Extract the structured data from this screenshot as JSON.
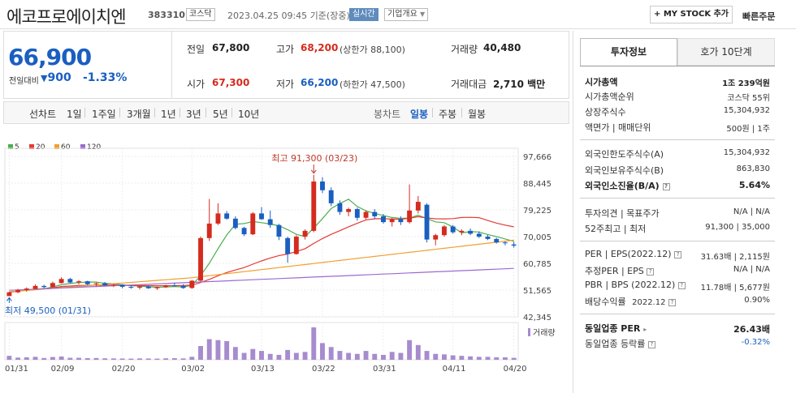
{
  "header": {
    "stock_name": "에코프로에이치엔",
    "stock_code": "383310",
    "market": "코스닥",
    "datetime": "2023.04.25 09:45 기준(장중)",
    "realtime": "실시간",
    "company_overview": "기업개요",
    "mystock_label": "+ MY STOCK 추가",
    "quick_order": "빠른주문"
  },
  "summary": {
    "price": "66,900",
    "change_label": "전일대비",
    "change_value": "900",
    "change_pct": "-1.33%",
    "prev_close_label": "전일",
    "prev_close": "67,800",
    "high_label": "고가",
    "high": "68,200",
    "upper_limit": "(상한가 88,100)",
    "volume_label": "거래량",
    "volume": "40,480",
    "open_label": "시가",
    "open": "67,300",
    "low_label": "저가",
    "low": "66,200",
    "lower_limit": "(하한가 47,500)",
    "amount_label": "거래대금",
    "amount": "2,710 백만"
  },
  "period_bar": {
    "line_chart": "선차트",
    "periods": [
      "1일",
      "1주일",
      "3개월",
      "1년",
      "3년",
      "5년",
      "10년"
    ],
    "candle_chart": "봉차트",
    "candle_periods": [
      "일봉",
      "주봉",
      "월봉"
    ],
    "active_candle": "일봉"
  },
  "chart_data": {
    "type": "candlestick",
    "legend": [
      {
        "name": "5",
        "color": "#4caf50"
      },
      {
        "name": "20",
        "color": "#e53935"
      },
      {
        "name": "60",
        "color": "#f0a030"
      },
      {
        "name": "120",
        "color": "#9c6ad0"
      }
    ],
    "y_ticks": [
      "97,666",
      "88,445",
      "79,225",
      "70,005",
      "60,785",
      "51,565",
      "42,345"
    ],
    "ylim": [
      42345,
      97666
    ],
    "x_ticks": [
      "01/31",
      "02/09",
      "02/20",
      "03/02",
      "03/13",
      "03/22",
      "03/31",
      "04/11",
      "04/20"
    ],
    "max_label": "최고 91,300 (03/23)",
    "min_label": "최저 49,500 (01/31)",
    "volume_label": "거래량",
    "candles": [
      [
        49500,
        51000,
        49500,
        50800
      ],
      [
        50800,
        52000,
        50500,
        51600
      ],
      [
        51600,
        52500,
        51000,
        52100
      ],
      [
        52000,
        53500,
        51800,
        53000
      ],
      [
        53000,
        53400,
        52200,
        52600
      ],
      [
        52600,
        54500,
        52400,
        54000
      ],
      [
        54000,
        56000,
        53800,
        55400
      ],
      [
        55400,
        55800,
        53800,
        54200
      ],
      [
        54200,
        55000,
        53500,
        54600
      ],
      [
        54600,
        54800,
        53200,
        53600
      ],
      [
        53600,
        54200,
        52800,
        53900
      ],
      [
        53900,
        54400,
        53000,
        53200
      ],
      [
        53200,
        53800,
        52600,
        53400
      ],
      [
        53400,
        53600,
        52200,
        52700
      ],
      [
        52700,
        53200,
        52000,
        52400
      ],
      [
        52400,
        53000,
        51800,
        52800
      ],
      [
        52800,
        53200,
        52000,
        52200
      ],
      [
        52200,
        52800,
        51600,
        52600
      ],
      [
        52600,
        53400,
        52300,
        53200
      ],
      [
        53200,
        54000,
        52800,
        53000
      ],
      [
        53000,
        53600,
        52000,
        52300
      ],
      [
        52300,
        55000,
        52000,
        54800
      ],
      [
        54800,
        70000,
        54500,
        69500
      ],
      [
        69500,
        83000,
        68500,
        74500
      ],
      [
        74500,
        81500,
        74000,
        78000
      ],
      [
        78000,
        78800,
        75800,
        76200
      ],
      [
        76200,
        77000,
        72500,
        73000
      ],
      [
        73000,
        73400,
        70200,
        70800
      ],
      [
        70800,
        78500,
        70500,
        78000
      ],
      [
        78000,
        80200,
        75800,
        76000
      ],
      [
        76000,
        79000,
        73000,
        74000
      ],
      [
        74000,
        74400,
        68800,
        70000
      ],
      [
        69500,
        70000,
        61000,
        64000
      ],
      [
        64000,
        70500,
        63800,
        70000
      ],
      [
        70000,
        72500,
        69000,
        72000
      ],
      [
        72000,
        91300,
        71500,
        89000
      ],
      [
        89000,
        90500,
        85000,
        86000
      ],
      [
        86000,
        87000,
        80500,
        81500
      ],
      [
        81500,
        82500,
        77500,
        78500
      ],
      [
        78500,
        80000,
        77000,
        79500
      ],
      [
        79500,
        80000,
        75500,
        76500
      ],
      [
        76500,
        79000,
        76000,
        78500
      ],
      [
        78500,
        79500,
        76000,
        77000
      ],
      [
        77000,
        77800,
        74500,
        75000
      ],
      [
        75000,
        76500,
        73500,
        76000
      ],
      [
        76000,
        77000,
        74000,
        75000
      ],
      [
        75000,
        88000,
        74500,
        79000
      ],
      [
        79000,
        84000,
        78000,
        82000
      ],
      [
        81000,
        81500,
        68000,
        69000
      ],
      [
        69000,
        71000,
        67000,
        70500
      ],
      [
        70500,
        74000,
        70000,
        73500
      ],
      [
        73500,
        74000,
        71000,
        71500
      ],
      [
        71500,
        72500,
        70500,
        72000
      ],
      [
        72000,
        72800,
        70500,
        71000
      ],
      [
        71000,
        71800,
        69500,
        70000
      ],
      [
        70000,
        70600,
        68800,
        69200
      ],
      [
        69200,
        69600,
        67600,
        68000
      ],
      [
        68000,
        68400,
        67000,
        67800
      ],
      [
        67300,
        68200,
        66200,
        66900
      ]
    ],
    "volumes": [
      40,
      22,
      25,
      30,
      18,
      28,
      33,
      20,
      20,
      17,
      18,
      15,
      14,
      13,
      12,
      14,
      13,
      12,
      15,
      16,
      14,
      30,
      140,
      210,
      200,
      190,
      130,
      70,
      110,
      90,
      60,
      50,
      100,
      70,
      80,
      330,
      170,
      130,
      90,
      70,
      60,
      90,
      60,
      50,
      80,
      70,
      200,
      150,
      90,
      60,
      55,
      45,
      40,
      35,
      30,
      30,
      25,
      25,
      20
    ]
  },
  "right_panel": {
    "tab_info": "투자정보",
    "tab_hoga": "호가 10단계",
    "market_cap_label": "시가총액",
    "market_cap": "1조 239억원",
    "rank_label": "시가총액순위",
    "rank": "코스닥 55위",
    "shares_label": "상장주식수",
    "shares": "15,304,932",
    "par_label": "액면가 | 매매단위",
    "par": "500원 | 1주",
    "foreign_limit_label": "외국인한도주식수(A)",
    "foreign_limit": "15,304,932",
    "foreign_hold_label": "외국인보유주식수(B)",
    "foreign_hold": "863,830",
    "foreign_ratio_label": "외국인소진율(B/A)",
    "foreign_ratio": "5.64%",
    "opinion_label": "투자의견 | 목표주가",
    "opinion": "N/A | N/A",
    "week52_label": "52주최고 | 최저",
    "week52": "91,300 | 35,000",
    "per_label": "PER | EPS(2022.12)",
    "per": "31.63배 | 2,115원",
    "est_per_label": "추정PER | EPS",
    "est_per": "N/A | N/A",
    "pbr_label": "PBR | BPS (2022.12)",
    "pbr": "11.78배 | 5,677원",
    "div_label": "배당수익률",
    "div_date": "2022.12",
    "div": "0.90%",
    "sector_per_label": "동일업종 PER",
    "sector_per": "26.43배",
    "sector_change_label": "동일업종 등락률",
    "sector_change": "-0.32%"
  }
}
